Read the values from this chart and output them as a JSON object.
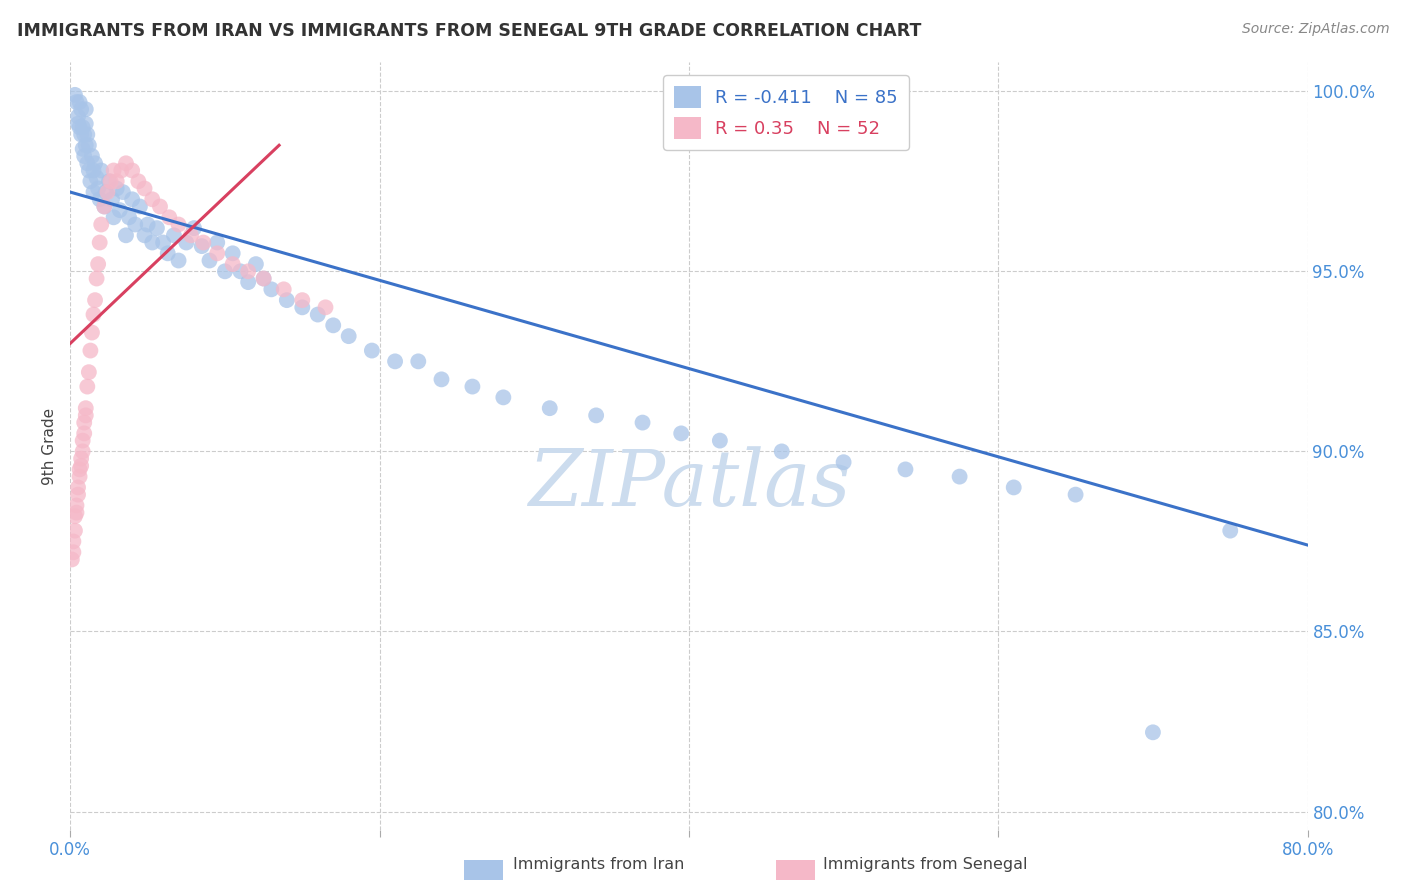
{
  "title": "IMMIGRANTS FROM IRAN VS IMMIGRANTS FROM SENEGAL 9TH GRADE CORRELATION CHART",
  "source": "Source: ZipAtlas.com",
  "ylabel": "9th Grade",
  "xlim": [
    0.0,
    0.8
  ],
  "ylim": [
    0.795,
    1.008
  ],
  "xtick_positions": [
    0.0,
    0.2,
    0.4,
    0.6,
    0.8
  ],
  "xtick_labels": [
    "0.0%",
    "",
    "",
    "",
    "80.0%"
  ],
  "ytick_positions": [
    0.8,
    0.85,
    0.9,
    0.95,
    1.0
  ],
  "ytick_labels": [
    "80.0%",
    "85.0%",
    "90.0%",
    "95.0%",
    "100.0%"
  ],
  "iran_R": -0.411,
  "iran_N": 85,
  "senegal_R": 0.35,
  "senegal_N": 52,
  "iran_color": "#a8c4e8",
  "senegal_color": "#f5b8c8",
  "iran_line_color": "#3b72c8",
  "senegal_line_color": "#d84060",
  "iran_line_x": [
    0.0,
    0.8
  ],
  "iran_line_y": [
    0.972,
    0.874
  ],
  "senegal_line_x": [
    0.0,
    0.135
  ],
  "senegal_line_y": [
    0.93,
    0.985
  ],
  "watermark_text": "ZIPatlas",
  "watermark_color": "#ccdcee",
  "legend_label_iran": "Immigrants from Iran",
  "legend_label_senegal": "Immigrants from Senegal",
  "iran_scatter_x": [
    0.003,
    0.004,
    0.005,
    0.005,
    0.006,
    0.006,
    0.007,
    0.007,
    0.008,
    0.008,
    0.009,
    0.009,
    0.01,
    0.01,
    0.01,
    0.011,
    0.011,
    0.012,
    0.012,
    0.013,
    0.014,
    0.015,
    0.015,
    0.016,
    0.017,
    0.018,
    0.019,
    0.02,
    0.022,
    0.023,
    0.025,
    0.027,
    0.028,
    0.03,
    0.032,
    0.034,
    0.036,
    0.038,
    0.04,
    0.042,
    0.045,
    0.048,
    0.05,
    0.053,
    0.056,
    0.06,
    0.063,
    0.067,
    0.07,
    0.075,
    0.08,
    0.085,
    0.09,
    0.095,
    0.1,
    0.105,
    0.11,
    0.115,
    0.12,
    0.125,
    0.13,
    0.14,
    0.15,
    0.16,
    0.17,
    0.18,
    0.195,
    0.21,
    0.225,
    0.24,
    0.26,
    0.28,
    0.31,
    0.34,
    0.37,
    0.395,
    0.42,
    0.46,
    0.5,
    0.54,
    0.575,
    0.61,
    0.65,
    0.7,
    0.75
  ],
  "iran_scatter_y": [
    0.999,
    0.997,
    0.993,
    0.991,
    0.997,
    0.99,
    0.995,
    0.988,
    0.99,
    0.984,
    0.988,
    0.982,
    0.995,
    0.991,
    0.985,
    0.988,
    0.98,
    0.985,
    0.978,
    0.975,
    0.982,
    0.978,
    0.972,
    0.98,
    0.976,
    0.973,
    0.97,
    0.978,
    0.968,
    0.972,
    0.975,
    0.97,
    0.965,
    0.973,
    0.967,
    0.972,
    0.96,
    0.965,
    0.97,
    0.963,
    0.968,
    0.96,
    0.963,
    0.958,
    0.962,
    0.958,
    0.955,
    0.96,
    0.953,
    0.958,
    0.962,
    0.957,
    0.953,
    0.958,
    0.95,
    0.955,
    0.95,
    0.947,
    0.952,
    0.948,
    0.945,
    0.942,
    0.94,
    0.938,
    0.935,
    0.932,
    0.928,
    0.925,
    0.925,
    0.92,
    0.918,
    0.915,
    0.912,
    0.91,
    0.908,
    0.905,
    0.903,
    0.9,
    0.897,
    0.895,
    0.893,
    0.89,
    0.888,
    0.822,
    0.878
  ],
  "senegal_scatter_x": [
    0.001,
    0.002,
    0.002,
    0.003,
    0.003,
    0.004,
    0.004,
    0.005,
    0.005,
    0.006,
    0.006,
    0.007,
    0.007,
    0.008,
    0.008,
    0.009,
    0.009,
    0.01,
    0.01,
    0.011,
    0.012,
    0.013,
    0.014,
    0.015,
    0.016,
    0.017,
    0.018,
    0.019,
    0.02,
    0.022,
    0.024,
    0.026,
    0.028,
    0.03,
    0.033,
    0.036,
    0.04,
    0.044,
    0.048,
    0.053,
    0.058,
    0.064,
    0.07,
    0.078,
    0.086,
    0.095,
    0.105,
    0.115,
    0.125,
    0.138,
    0.15,
    0.165
  ],
  "senegal_scatter_y": [
    0.87,
    0.875,
    0.872,
    0.878,
    0.882,
    0.885,
    0.883,
    0.89,
    0.888,
    0.895,
    0.893,
    0.898,
    0.896,
    0.903,
    0.9,
    0.908,
    0.905,
    0.912,
    0.91,
    0.918,
    0.922,
    0.928,
    0.933,
    0.938,
    0.942,
    0.948,
    0.952,
    0.958,
    0.963,
    0.968,
    0.972,
    0.975,
    0.978,
    0.975,
    0.978,
    0.98,
    0.978,
    0.975,
    0.973,
    0.97,
    0.968,
    0.965,
    0.963,
    0.96,
    0.958,
    0.955,
    0.952,
    0.95,
    0.948,
    0.945,
    0.942,
    0.94
  ]
}
